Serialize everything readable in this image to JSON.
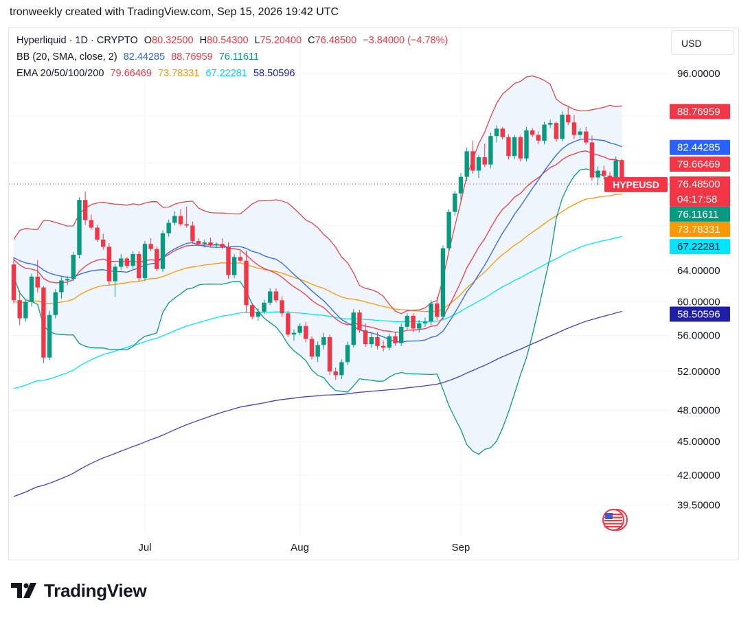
{
  "header": {
    "caption": "tronweekly created with TradingView.com, Sep 15, 2026 19:42 UTC"
  },
  "legend": {
    "symbol": "Hyperliquid · 1D · CRYPTO",
    "open_label": "O",
    "open": "80.32500",
    "high_label": "H",
    "high": "80.54300",
    "low_label": "L",
    "low": "75.20400",
    "close_label": "C",
    "close": "76.48500",
    "change": "−3.84000 (−4.78%)",
    "bb_label": "BB (20, SMA, close, 2)",
    "bb_basis": "82.44285",
    "bb_upper": "88.76959",
    "bb_lower": "76.11611",
    "ema_label": "EMA 20/50/100/200",
    "ema20": "79.66469",
    "ema50": "73.78331",
    "ema100": "67.22281",
    "ema200": "58.50596"
  },
  "toolbar": {
    "currency": "USD"
  },
  "brand": {
    "name": "TradingView",
    "logo_icon": "tradingview-logo-icon"
  },
  "colors": {
    "up": "#089981",
    "down": "#f23645",
    "bb_upper": "#e0454c",
    "bb_basis": "#2962ff",
    "bb_lower": "#089981",
    "ema20": "#f23645",
    "ema50": "#ff9800",
    "ema100": "#00e5ff",
    "ema200": "#3f3fc9",
    "bb_fill": "#eef5fc"
  },
  "chart_data": {
    "type": "candlestick",
    "symbol": "HYPEUSD",
    "scale": "log",
    "y_ticks": [
      39.5,
      42,
      45,
      48,
      52,
      56,
      60,
      64,
      96
    ],
    "y_tick_labels": [
      "39.50000",
      "42.00000",
      "45.00000",
      "48.00000",
      "52.00000",
      "56.00000",
      "60.00000",
      "64.00000",
      "96.00000"
    ],
    "x_labels": [
      {
        "label": "Jul",
        "index": 22
      },
      {
        "label": "Aug",
        "index": 48
      },
      {
        "label": "Sep",
        "index": 75
      }
    ],
    "price_labels": [
      {
        "id": "bb_upper",
        "text": "88.76959",
        "value": 88.76959,
        "bg": "#f23645",
        "fg": "#ffffff"
      },
      {
        "id": "bb_basis",
        "text": "82.44285",
        "value": 82.44285,
        "bg": "#2962ff",
        "fg": "#ffffff"
      },
      {
        "id": "ema20",
        "text": "79.66469",
        "value": 79.66469,
        "bg": "#f23645",
        "fg": "#ffffff"
      },
      {
        "id": "last",
        "text": "76.48500",
        "value": 76.485,
        "bg": "#f23645",
        "fg": "#ffffff",
        "ticker": "HYPEUSD",
        "countdown": "04:17:58"
      },
      {
        "id": "bb_lower",
        "text": "76.11611",
        "value": 76.11611,
        "bg": "#089981",
        "fg": "#ffffff"
      },
      {
        "id": "ema50",
        "text": "73.78331",
        "value": 73.78331,
        "bg": "#ff9800",
        "fg": "#ffffff"
      },
      {
        "id": "ema100",
        "text": "67.22281",
        "value": 67.22281,
        "bg": "#00e5ff",
        "fg": "#131722"
      },
      {
        "id": "ema200",
        "text": "58.50596",
        "value": 58.50596,
        "bg": "#1e1ea8",
        "fg": "#ffffff"
      }
    ],
    "candles": [
      [
        64.8,
        65.8,
        59.8,
        60.2
      ],
      [
        60.2,
        61.4,
        57.2,
        58.0
      ],
      [
        58.0,
        60.3,
        57.6,
        60.0
      ],
      [
        60.0,
        63.6,
        59.4,
        63.2
      ],
      [
        63.2,
        65.4,
        61.2,
        61.8
      ],
      [
        61.8,
        62.0,
        52.9,
        53.5
      ],
      [
        53.5,
        58.9,
        53.2,
        58.4
      ],
      [
        58.4,
        61.6,
        58.0,
        61.2
      ],
      [
        61.2,
        63.1,
        60.4,
        62.7
      ],
      [
        62.7,
        63.3,
        62.1,
        62.9
      ],
      [
        62.9,
        66.5,
        62.6,
        66.1
      ],
      [
        66.1,
        74.4,
        65.6,
        74.0
      ],
      [
        74.0,
        75.3,
        70.3,
        71.0
      ],
      [
        71.0,
        71.8,
        69.6,
        69.9
      ],
      [
        69.9,
        70.3,
        67.9,
        68.2
      ],
      [
        68.2,
        69.0,
        66.8,
        67.2
      ],
      [
        67.2,
        67.7,
        62.1,
        62.6
      ],
      [
        62.6,
        64.9,
        60.6,
        64.5
      ],
      [
        64.5,
        66.2,
        64.1,
        65.6
      ],
      [
        65.6,
        65.8,
        64.3,
        64.6
      ],
      [
        64.6,
        66.6,
        64.2,
        66.2
      ],
      [
        66.2,
        66.6,
        62.6,
        63.0
      ],
      [
        63.0,
        68.0,
        62.6,
        67.6
      ],
      [
        67.6,
        68.4,
        66.6,
        66.9
      ],
      [
        66.9,
        67.2,
        63.9,
        64.2
      ],
      [
        64.2,
        69.5,
        63.8,
        69.1
      ],
      [
        69.1,
        71.1,
        68.6,
        70.6
      ],
      [
        70.6,
        72.3,
        70.2,
        71.6
      ],
      [
        71.6,
        72.6,
        70.1,
        70.4
      ],
      [
        70.4,
        73.0,
        69.9,
        70.2
      ],
      [
        70.2,
        70.8,
        67.6,
        68.0
      ],
      [
        68.0,
        68.4,
        67.3,
        67.6
      ],
      [
        67.6,
        68.2,
        67.1,
        67.8
      ],
      [
        67.8,
        68.5,
        67.2,
        67.4
      ],
      [
        67.4,
        67.8,
        67.0,
        67.6
      ],
      [
        67.6,
        68.4,
        66.9,
        67.2
      ],
      [
        67.2,
        67.8,
        62.9,
        63.4
      ],
      [
        63.4,
        66.2,
        63.0,
        65.8
      ],
      [
        65.8,
        66.6,
        65.1,
        65.3
      ],
      [
        65.3,
        66.7,
        58.7,
        59.6
      ],
      [
        59.6,
        59.9,
        57.9,
        58.2
      ],
      [
        58.2,
        59.2,
        57.7,
        58.8
      ],
      [
        58.8,
        60.3,
        58.5,
        59.9
      ],
      [
        59.9,
        61.7,
        59.6,
        61.3
      ],
      [
        61.3,
        61.7,
        59.9,
        60.2
      ],
      [
        60.2,
        60.7,
        58.2,
        58.6
      ],
      [
        58.6,
        58.9,
        55.8,
        56.1
      ],
      [
        56.1,
        56.7,
        55.4,
        56.3
      ],
      [
        56.3,
        57.4,
        56.0,
        57.1
      ],
      [
        57.1,
        57.6,
        55.2,
        55.6
      ],
      [
        55.6,
        55.9,
        53.3,
        53.6
      ],
      [
        53.6,
        55.3,
        53.0,
        54.9
      ],
      [
        54.9,
        56.3,
        54.4,
        55.8
      ],
      [
        55.8,
        56.1,
        51.6,
        52.0
      ],
      [
        52.0,
        52.4,
        51.1,
        51.6
      ],
      [
        51.6,
        53.3,
        51.2,
        53.0
      ],
      [
        53.0,
        55.3,
        52.7,
        54.9
      ],
      [
        54.9,
        59.1,
        54.6,
        58.7
      ],
      [
        58.7,
        59.0,
        56.3,
        56.6
      ],
      [
        56.6,
        57.4,
        54.7,
        55.0
      ],
      [
        55.0,
        56.2,
        54.6,
        55.8
      ],
      [
        55.8,
        56.4,
        54.4,
        54.8
      ],
      [
        54.8,
        55.4,
        54.2,
        54.6
      ],
      [
        54.6,
        56.2,
        54.3,
        55.9
      ],
      [
        55.9,
        56.3,
        54.8,
        55.1
      ],
      [
        55.1,
        57.4,
        54.8,
        57.0
      ],
      [
        57.0,
        58.6,
        56.7,
        58.3
      ],
      [
        58.3,
        58.6,
        56.4,
        56.8
      ],
      [
        56.8,
        57.8,
        56.3,
        57.4
      ],
      [
        57.4,
        58.1,
        57.0,
        57.6
      ],
      [
        57.6,
        60.2,
        57.2,
        59.8
      ],
      [
        59.8,
        60.6,
        57.8,
        58.2
      ],
      [
        58.2,
        67.4,
        57.9,
        67.0
      ],
      [
        67.0,
        72.6,
        66.6,
        72.2
      ],
      [
        72.2,
        75.4,
        71.6,
        75.0
      ],
      [
        75.0,
        78.2,
        73.8,
        77.6
      ],
      [
        77.6,
        82.4,
        76.9,
        81.8
      ],
      [
        81.8,
        83.6,
        78.1,
        78.6
      ],
      [
        78.6,
        81.2,
        77.4,
        80.8
      ],
      [
        80.8,
        83.1,
        79.2,
        79.6
      ],
      [
        79.6,
        85.0,
        79.0,
        84.4
      ],
      [
        84.4,
        86.3,
        83.3,
        85.7
      ],
      [
        85.7,
        86.0,
        83.8,
        84.2
      ],
      [
        84.2,
        84.7,
        80.4,
        81.0
      ],
      [
        81.0,
        84.6,
        80.5,
        84.2
      ],
      [
        84.2,
        84.5,
        80.1,
        80.6
      ],
      [
        80.6,
        86.0,
        80.1,
        85.4
      ],
      [
        85.4,
        85.8,
        84.2,
        84.6
      ],
      [
        84.6,
        85.2,
        83.0,
        83.6
      ],
      [
        83.6,
        86.9,
        83.0,
        86.4
      ],
      [
        86.4,
        87.3,
        85.8,
        86.7
      ],
      [
        86.7,
        87.0,
        83.4,
        83.9
      ],
      [
        83.9,
        88.8,
        83.5,
        88.2
      ],
      [
        88.2,
        89.6,
        86.3,
        86.8
      ],
      [
        86.8,
        88.2,
        83.9,
        84.6
      ],
      [
        84.6,
        85.8,
        84.1,
        85.2
      ],
      [
        85.2,
        86.0,
        82.9,
        83.3
      ],
      [
        83.3,
        84.5,
        77.0,
        77.5
      ],
      [
        77.5,
        79.3,
        76.3,
        78.6
      ],
      [
        78.6,
        79.4,
        77.2,
        77.8
      ],
      [
        77.8,
        78.4,
        75.9,
        76.3
      ],
      [
        76.3,
        80.9,
        76.0,
        80.3
      ],
      [
        80.3254,
        80.543,
        75.204,
        76.485
      ]
    ]
  }
}
